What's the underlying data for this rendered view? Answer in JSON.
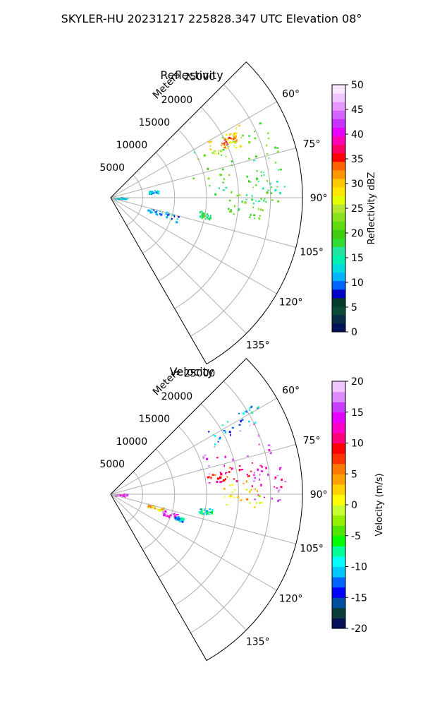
{
  "figure": {
    "title": "SKYLER-HU  20231217  225828.347 UTC Elevation 08°"
  },
  "colors": {
    "reflectivity_scale": [
      "#061257",
      "#0a2c46",
      "#0b4a38",
      "#063a2d",
      "#0000c8",
      "#0064ff",
      "#00b4ff",
      "#00dcdc",
      "#00f0b0",
      "#22e6a0",
      "#30dc30",
      "#40cc10",
      "#60dc10",
      "#8ce11e",
      "#b4e632",
      "#e6ff00",
      "#ffe600",
      "#ffc800",
      "#ff9600",
      "#ff6400",
      "#ff0000",
      "#ff0064",
      "#ff00b4",
      "#e600ff",
      "#c832ff",
      "#d264ff",
      "#e696ff",
      "#f0c8ff",
      "#fae6ff"
    ],
    "velocity_scale": [
      "#061257",
      "#0a3c3c",
      "#0050a0",
      "#0000ff",
      "#0064ff",
      "#00c8ff",
      "#00ffff",
      "#00ff96",
      "#00ff00",
      "#50e600",
      "#96f000",
      "#c8ff32",
      "#ffff00",
      "#ffd200",
      "#ffa000",
      "#ff7800",
      "#ff3200",
      "#ff0000",
      "#ff0078",
      "#ff00c8",
      "#e600ff",
      "#c83cff",
      "#dc8cff",
      "#f0c8ff"
    ]
  },
  "chart_data": [
    {
      "type": "heatmap",
      "subtype": "polar-ppi",
      "title": "Reflectivity",
      "radial_label": "Meters",
      "radial_ticks": [
        5000,
        10000,
        15000,
        20000,
        25000
      ],
      "radial_tick_labels": [
        "5000",
        "10000",
        "15000",
        "20000",
        "25000"
      ],
      "rmax": 30000,
      "azimuth_range": [
        45,
        150
      ],
      "azimuth_ticks": [
        60,
        75,
        90,
        105,
        120,
        135
      ],
      "azimuth_tick_labels": [
        "60°",
        "75°",
        "90°",
        "105°",
        "120°",
        "135°"
      ],
      "grid": true,
      "colorbar": {
        "label": "Reflectivity dBZ",
        "range": [
          0,
          50
        ],
        "ticks": [
          0,
          5,
          10,
          15,
          20,
          25,
          30,
          35,
          40,
          45,
          50
        ],
        "tick_labels": [
          "0",
          "5",
          "10",
          "15",
          "20",
          "25",
          "30",
          "35",
          "40",
          "45",
          "50"
        ]
      },
      "echo_regions": [
        {
          "az": [
            58,
            88
          ],
          "r": [
            13000,
            27500
          ],
          "value": 20
        },
        {
          "az": [
            60,
            68
          ],
          "r": [
            17000,
            23000
          ],
          "value": 27
        },
        {
          "az": [
            62,
            66
          ],
          "r": [
            19000,
            22000
          ],
          "value": 33
        },
        {
          "az": [
            86,
            98
          ],
          "r": [
            18000,
            24000
          ],
          "value": 20
        },
        {
          "az": [
            80,
            92
          ],
          "r": [
            21000,
            27000
          ],
          "value": 18
        },
        {
          "az": [
            104,
            110
          ],
          "r": [
            6000,
            11000
          ],
          "value": 11
        },
        {
          "az": [
            86,
            95
          ],
          "r": [
            500,
            2500
          ],
          "value": 12
        },
        {
          "az": [
            80,
            84
          ],
          "r": [
            6000,
            7500
          ],
          "value": 11
        },
        {
          "az": [
            98,
            102
          ],
          "r": [
            14000,
            16000
          ],
          "value": 16
        }
      ]
    },
    {
      "type": "heatmap",
      "subtype": "polar-ppi",
      "title": "Velocity",
      "radial_label": "Meters",
      "radial_ticks": [
        5000,
        10000,
        15000,
        20000,
        25000
      ],
      "radial_tick_labels": [
        "5000",
        "10000",
        "15000",
        "20000",
        "25000"
      ],
      "rmax": 30000,
      "azimuth_range": [
        45,
        150
      ],
      "azimuth_ticks": [
        60,
        75,
        90,
        105,
        120,
        135
      ],
      "azimuth_tick_labels": [
        "60°",
        "75°",
        "90°",
        "105°",
        "120°",
        "135°"
      ],
      "grid": true,
      "colorbar": {
        "label": "Velocity (m/s)",
        "range": [
          -20,
          20
        ],
        "ticks": [
          -20,
          -15,
          -10,
          -5,
          0,
          5,
          10,
          15,
          20
        ],
        "tick_labels": [
          "-20",
          "-15",
          "-10",
          "-5",
          "0",
          "5",
          "10",
          "15",
          "20"
        ]
      },
      "echo_regions": [
        {
          "az": [
            57,
            64
          ],
          "r": [
            18000,
            27000
          ],
          "value": -11
        },
        {
          "az": [
            63,
            80
          ],
          "r": [
            14000,
            26500
          ],
          "value": 15
        },
        {
          "az": [
            77,
            84
          ],
          "r": [
            15000,
            23000
          ],
          "value": 9
        },
        {
          "az": [
            84,
            95
          ],
          "r": [
            17500,
            23500
          ],
          "value": 2
        },
        {
          "az": [
            80,
            92
          ],
          "r": [
            22000,
            27500
          ],
          "value": 14
        },
        {
          "az": [
            104,
            108
          ],
          "r": [
            6000,
            8500
          ],
          "value": 2
        },
        {
          "az": [
            106,
            111
          ],
          "r": [
            8500,
            11000
          ],
          "value": 15
        },
        {
          "az": [
            108,
            111
          ],
          "r": [
            10500,
            12000
          ],
          "value": -11
        },
        {
          "az": [
            86,
            95
          ],
          "r": [
            500,
            2500
          ],
          "value": 14
        },
        {
          "az": [
            98,
            102
          ],
          "r": [
            14000,
            16000
          ],
          "value": -8
        }
      ]
    }
  ]
}
